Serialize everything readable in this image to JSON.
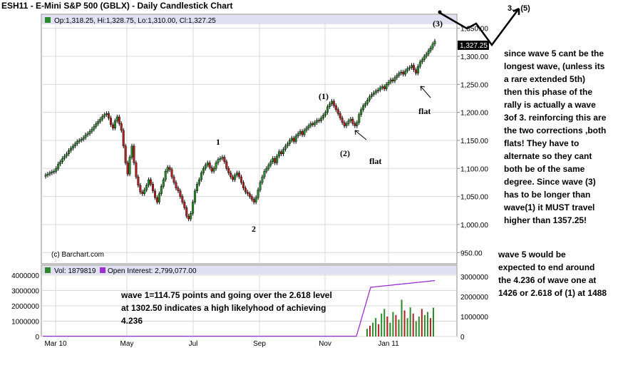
{
  "chart_title": "ESH11 - E-Mini S&P 500 (GBLX) - Daily Candlestick Chart",
  "ohlc_legend": "Op:1,318.25, Hi:1,328.75, Lo:1,310.00, Cl:1,327.25",
  "last_price_tag": "1,327.25",
  "copyright": "(c) Barchart.com",
  "volume_legend": "Vol: 1879819",
  "oi_legend": "Open Interest: 2,799,077.00",
  "colors": {
    "up": "#2a8a2a",
    "down": "#b02020",
    "oi": "#9a30d0",
    "volume_up": "#2a8a2a",
    "volume_down": "#b02020",
    "legend_bar": "#e0e0f2"
  },
  "chart_data": [
    {
      "type": "candlestick",
      "y_ticks": [
        "950.00",
        "1,000.00",
        "1,050.00",
        "1,100.00",
        "1,150.00",
        "1,200.00",
        "1,250.00",
        "1,300.00",
        "1,350.00"
      ],
      "x_ticks": [
        "Mar 10",
        "May",
        "Jul",
        "Sep",
        "Nov",
        "Jan 11"
      ],
      "ylim": [
        930,
        1375
      ],
      "approx_closes": [
        1088,
        1090,
        1092,
        1094,
        1095,
        1100,
        1108,
        1112,
        1118,
        1122,
        1126,
        1132,
        1136,
        1140,
        1144,
        1148,
        1150,
        1152,
        1155,
        1160,
        1162,
        1166,
        1170,
        1175,
        1180,
        1184,
        1188,
        1193,
        1196,
        1198,
        1190,
        1178,
        1172,
        1185,
        1192,
        1180,
        1168,
        1140,
        1110,
        1090,
        1120,
        1140,
        1110,
        1085,
        1070,
        1058,
        1055,
        1062,
        1070,
        1080,
        1072,
        1060,
        1048,
        1040,
        1055,
        1068,
        1080,
        1095,
        1102,
        1098,
        1085,
        1075,
        1065,
        1060,
        1050,
        1040,
        1030,
        1015,
        1010,
        1020,
        1040,
        1060,
        1072,
        1080,
        1092,
        1100,
        1106,
        1110,
        1102,
        1095,
        1100,
        1110,
        1116,
        1118,
        1120,
        1112,
        1100,
        1092,
        1085,
        1080,
        1088,
        1092,
        1085,
        1075,
        1065,
        1058,
        1055,
        1050,
        1045,
        1040,
        1048,
        1062,
        1075,
        1085,
        1095,
        1100,
        1106,
        1112,
        1118,
        1110,
        1122,
        1130,
        1126,
        1134,
        1140,
        1144,
        1150,
        1154,
        1148,
        1158,
        1162,
        1166,
        1160,
        1168,
        1172,
        1176,
        1180,
        1178,
        1182,
        1186,
        1185,
        1190,
        1195,
        1200,
        1210,
        1215,
        1220,
        1212,
        1205,
        1198,
        1190,
        1182,
        1176,
        1180,
        1185,
        1188,
        1180,
        1176,
        1182,
        1196,
        1205,
        1212,
        1216,
        1222,
        1228,
        1232,
        1235,
        1238,
        1240,
        1244,
        1246,
        1242,
        1250,
        1254,
        1258,
        1256,
        1262,
        1266,
        1270,
        1272,
        1268,
        1274,
        1278,
        1280,
        1284,
        1276,
        1270,
        1282,
        1290,
        1294,
        1300,
        1304,
        1310,
        1315,
        1322,
        1327
      ]
    },
    {
      "type": "volume_and_open_interest",
      "y_ticks_volume": [
        "0",
        "1000000",
        "2000000",
        "3000000",
        "4000000"
      ],
      "y_ticks_oi": [
        "0",
        "1000000",
        "2000000",
        "3000000"
      ],
      "ylim": [
        0,
        4000000
      ],
      "approx_volume_last_bars": [
        500000,
        700000,
        900000,
        1200000,
        800000,
        1500000,
        1800000,
        1300000,
        900000,
        1600000,
        1400000,
        1100000,
        2400000,
        1700000,
        1200000,
        1900000,
        1500000,
        1000000,
        1300000,
        1800000,
        1400000,
        1600000,
        1200000,
        1879819
      ],
      "open_interest_note": "near 0 until mid-Nov, rising to ~2,700,000 by early Dec, ending 2,799,077"
    }
  ],
  "annotations": {
    "wave_1": "1",
    "wave_2": "2",
    "wave_1b": "(1)",
    "wave_2b": "(2)",
    "wave_3": "(3)",
    "flat_a": "flat",
    "flat_b": "flat",
    "projection_label": "3... (5)",
    "right_note": [
      "since wave 5 cant be the",
      "longest wave, (unless its",
      "a rare extended 5th)",
      "then this phase of the",
      "rally is actually a wave",
      "3of 3. reinforcing this are",
      "the two corrections ,both",
      "flats! They have to",
      "alternate so they cant",
      "both be of the same",
      "degree. Since wave (3)",
      "has to be longer than",
      "wave(1) it MUST travel",
      "higher than 1357.25!"
    ],
    "bottom_right_note": [
      "wave 5 would be",
      "expected to end around",
      "the 4.236 of wave one at",
      "1426 or 2.618 of (1) at 1488"
    ],
    "volume_note": [
      "wave 1=114.75 points and going over the 2.618 level",
      "at 1302.50 indicates a high likelyhood of achieving",
      "4.236"
    ]
  }
}
